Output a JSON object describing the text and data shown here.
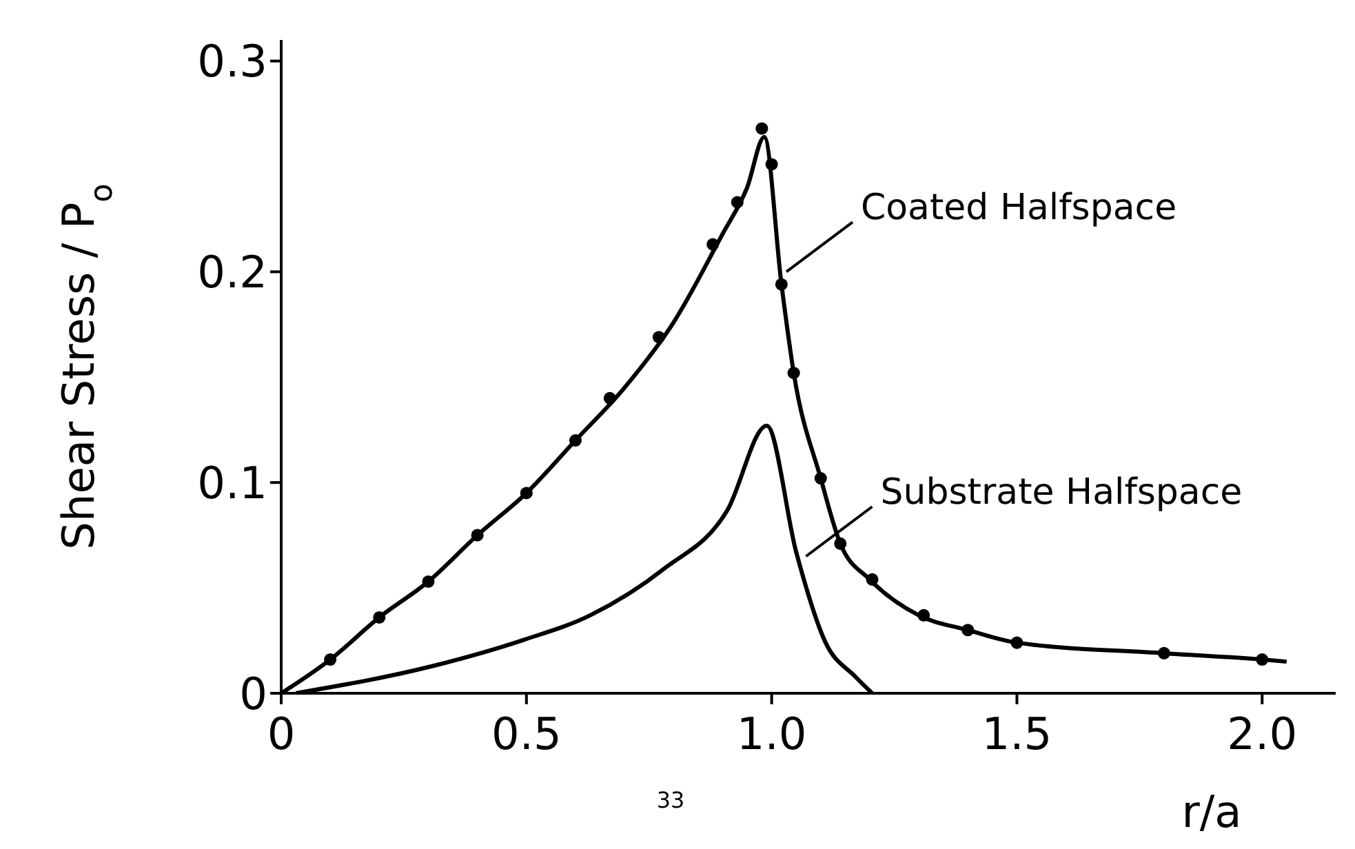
{
  "chart_data": {
    "type": "line",
    "xlabel": "r/a",
    "ylabel": "Shear Stress / P$_{o}$",
    "xlim": [
      0,
      2.15
    ],
    "xticks": [
      0,
      0.5,
      {
        "value": 1,
        "label": "1.0"
      },
      1.5,
      {
        "value": 2,
        "label": "2.0"
      }
    ],
    "ylim": [
      0,
      0.31
    ],
    "yticks": [
      0,
      0.1,
      0.2,
      0.3
    ],
    "line_style": "solid",
    "series": [
      {
        "color": "#000000",
        "marker": "none",
        "x": [
          0,
          0.1,
          0.2,
          0.3,
          0.4,
          0.5,
          0.6,
          0.7,
          0.8,
          0.9,
          0.95,
          0.985,
          1.02,
          1.045,
          1.1,
          1.14,
          1.2,
          1.3,
          1.4,
          1.5,
          1.8,
          2.0,
          2.05
        ],
        "values": [
          0,
          0.016,
          0.036,
          0.053,
          0.075,
          0.095,
          0.12,
          0.145,
          0.176,
          0.218,
          0.24,
          0.264,
          0.194,
          0.152,
          0.102,
          0.071,
          0.054,
          0.037,
          0.03,
          0.024,
          0.019,
          0.016,
          0.015
        ]
      },
      {
        "type": "scatter",
        "color": "#000000",
        "marker": "circle",
        "x": [
          0.1,
          0.2,
          0.3,
          0.4,
          0.5,
          0.6,
          0.67,
          0.77,
          0.88,
          0.93,
          0.98,
          1.0,
          1.02,
          1.045,
          1.1,
          1.14,
          1.205,
          1.31,
          1.4,
          1.5,
          1.8,
          2.0
        ],
        "values": [
          0.016,
          0.036,
          0.053,
          0.075,
          0.095,
          0.12,
          0.14,
          0.169,
          0.213,
          0.233,
          0.268,
          0.251,
          0.194,
          0.152,
          0.102,
          0.071,
          0.054,
          0.037,
          0.03,
          0.024,
          0.019,
          0.016
        ]
      },
      {
        "color": "#000000",
        "marker": "none",
        "x": [
          0.03,
          0.31,
          0.49,
          0.63,
          0.78,
          0.91,
          0.99,
          1.05,
          1.11,
          1.17,
          1.205
        ],
        "values": [
          0,
          0.013,
          0.025,
          0.037,
          0.059,
          0.087,
          0.127,
          0.067,
          0.024,
          0.008,
          0
        ]
      }
    ],
    "annotations": [
      {
        "text": "Coated Halfspace",
        "x": 1.03,
        "y": 0.2
      },
      {
        "text": "Substrate Halfspace",
        "x": 1.07,
        "y": 0.065
      },
      "33"
    ]
  }
}
